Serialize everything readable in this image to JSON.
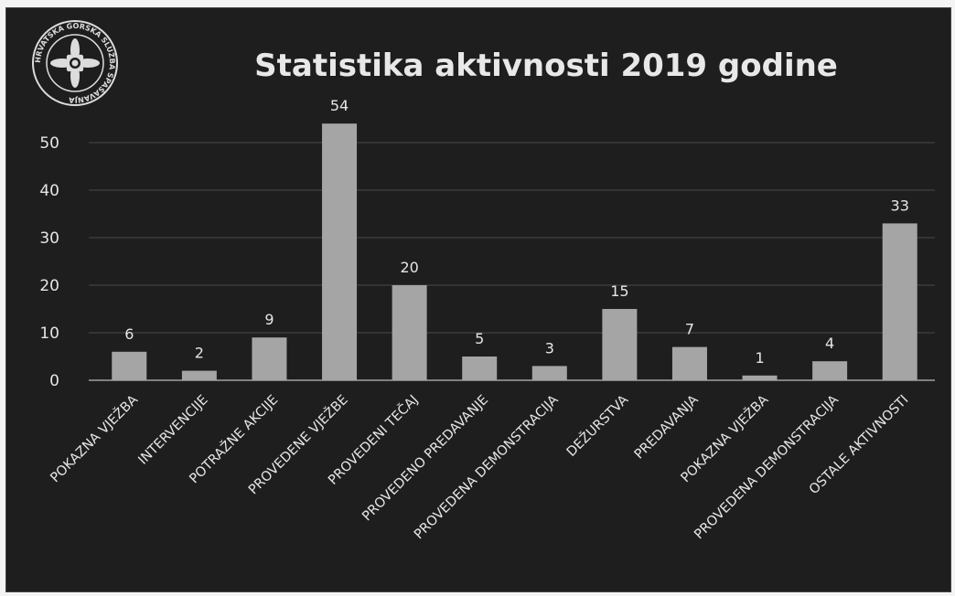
{
  "logo": {
    "text": "HRVATSKA GORSKA SLUŽBA SPAŠAVANJA"
  },
  "chart_data": {
    "type": "bar",
    "title": "Statistika aktivnosti 2019 godine",
    "xlabel": "",
    "ylabel": "",
    "ylim": [
      0,
      55
    ],
    "yticks": [
      "0",
      "10",
      "20",
      "30",
      "40",
      "50"
    ],
    "grid": true,
    "legend": "none",
    "bar_color": "#a5a5a5",
    "background_color": "#1e1e1e",
    "categories": [
      "POKAZNA VJEŽBA",
      "INTERVENCIJE",
      "POTRAŽNE AKCIJE",
      "PROVEDENE VJEŽBE",
      "PROVEDENI TEČAJ",
      "PROVEDENO PREDAVANJE",
      "PROVEDENA DEMONSTRACIJA",
      "DEŽURSTVA",
      "PREDAVANJA",
      "POKAZNA VJEŽBA",
      "PROVEDENA DEMONSTRACIJA",
      "OSTALE AKTIVNOSTI"
    ],
    "values": [
      6,
      2,
      9,
      54,
      20,
      5,
      3,
      15,
      7,
      1,
      4,
      33
    ]
  }
}
